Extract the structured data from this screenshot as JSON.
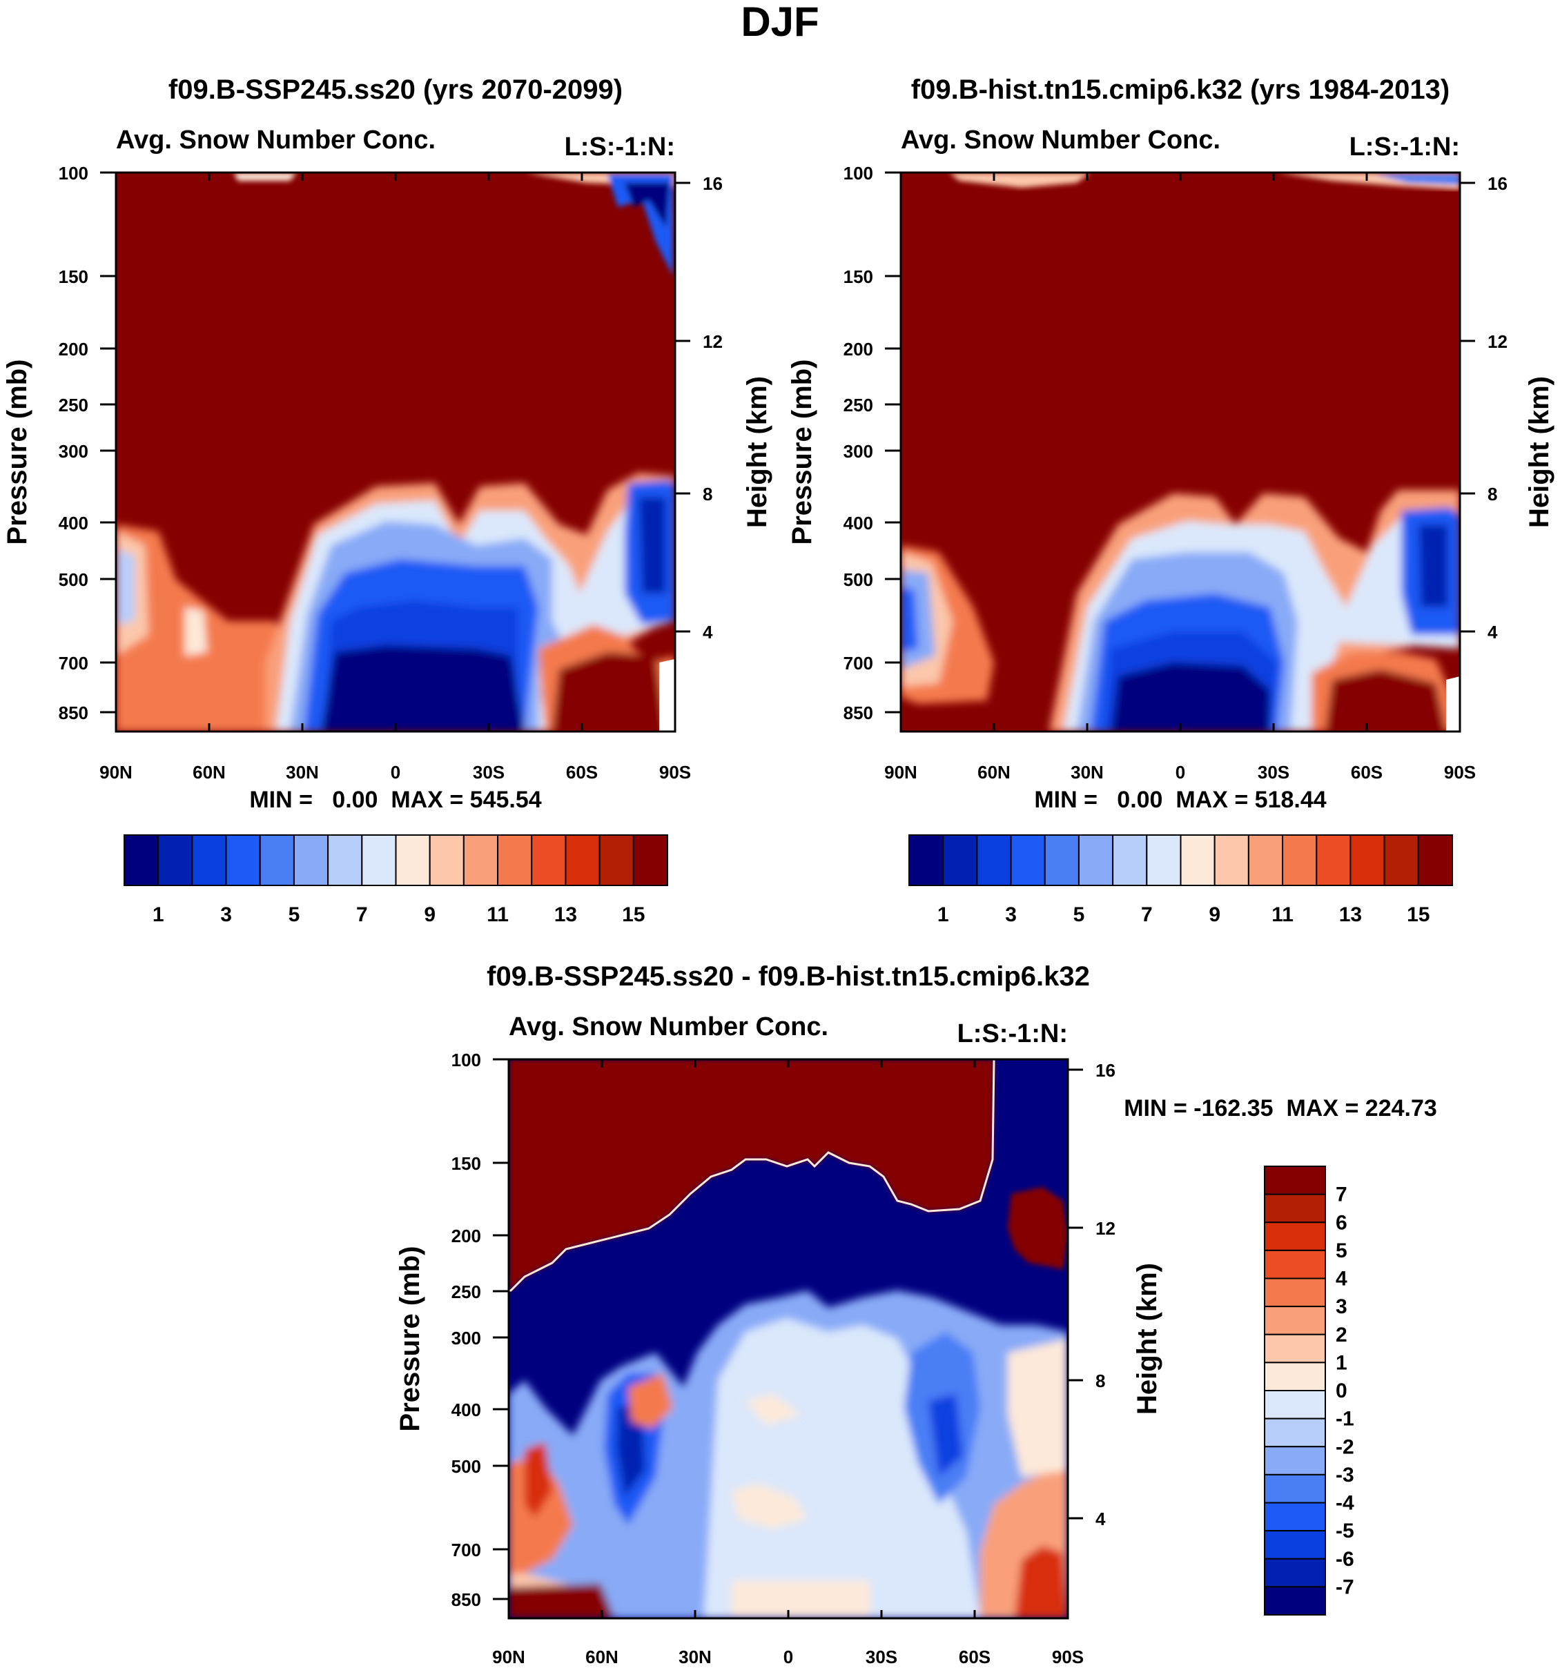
{
  "title": "DJF",
  "chart_data": [
    {
      "type": "heatmap",
      "title": "f09.B-SSP245.ss20 (yrs 2070-2099)",
      "subtitle_left": "Avg. Snow Number Conc.",
      "subtitle_right": "L:S:-1:N:",
      "ylabel": "Pressure (mb)",
      "ylabel_right": "Height (km)",
      "xticks": [
        "90N",
        "60N",
        "30N",
        "0",
        "30S",
        "60S",
        "90S"
      ],
      "yticks": [
        "100",
        "150",
        "200",
        "250",
        "300",
        "400",
        "500",
        "700",
        "850"
      ],
      "yticks_right": [
        "16",
        "12",
        "8",
        "4"
      ],
      "stats": "MIN =   0.00  MAX = 545.54",
      "colorbar": {
        "labels": [
          "1",
          "3",
          "5",
          "7",
          "9",
          "11",
          "13",
          "15"
        ],
        "colors": [
          "#00007f",
          "#0021b2",
          "#0a3fe0",
          "#1e5af5",
          "#4a7ef5",
          "#88aaf7",
          "#b8cefa",
          "#dbe8fb",
          "#fde9d9",
          "#fcc7ab",
          "#f9a07a",
          "#f47a4e",
          "#ec4d24",
          "#d82e0a",
          "#b21f04",
          "#850000"
        ]
      }
    },
    {
      "type": "heatmap",
      "title": "f09.B-hist.tn15.cmip6.k32 (yrs 1984-2013)",
      "subtitle_left": "Avg. Snow Number Conc.",
      "subtitle_right": "L:S:-1:N:",
      "ylabel": "Pressure (mb)",
      "ylabel_right": "Height (km)",
      "xticks": [
        "90N",
        "60N",
        "30N",
        "0",
        "30S",
        "60S",
        "90S"
      ],
      "yticks": [
        "100",
        "150",
        "200",
        "250",
        "300",
        "400",
        "500",
        "700",
        "850"
      ],
      "yticks_right": [
        "16",
        "12",
        "8",
        "4"
      ],
      "stats": "MIN =   0.00  MAX = 518.44",
      "colorbar": {
        "labels": [
          "1",
          "3",
          "5",
          "7",
          "9",
          "11",
          "13",
          "15"
        ],
        "colors": [
          "#00007f",
          "#0021b2",
          "#0a3fe0",
          "#1e5af5",
          "#4a7ef5",
          "#88aaf7",
          "#b8cefa",
          "#dbe8fb",
          "#fde9d9",
          "#fcc7ab",
          "#f9a07a",
          "#f47a4e",
          "#ec4d24",
          "#d82e0a",
          "#b21f04",
          "#850000"
        ]
      }
    },
    {
      "type": "heatmap",
      "title": "f09.B-SSP245.ss20 - f09.B-hist.tn15.cmip6.k32",
      "subtitle_left": "Avg. Snow Number Conc.",
      "subtitle_right": "L:S:-1:N:",
      "ylabel": "Pressure (mb)",
      "ylabel_right": "Height (km)",
      "xticks": [
        "90N",
        "60N",
        "30N",
        "0",
        "30S",
        "60S",
        "90S"
      ],
      "yticks": [
        "100",
        "150",
        "200",
        "250",
        "300",
        "400",
        "500",
        "700",
        "850"
      ],
      "yticks_right": [
        "16",
        "12",
        "8",
        "4"
      ],
      "stats": "MIN = -162.35  MAX = 224.73",
      "colorbar": {
        "labels": [
          "7",
          "6",
          "5",
          "4",
          "3",
          "2",
          "1",
          "0",
          "-1",
          "-2",
          "-3",
          "-4",
          "-5",
          "-6",
          "-7"
        ],
        "colors": [
          "#850000",
          "#b21f04",
          "#d82e0a",
          "#ec4d24",
          "#f47a4e",
          "#f9a07a",
          "#fcc7ab",
          "#fde9d9",
          "#dbe8fb",
          "#b8cefa",
          "#88aaf7",
          "#4a7ef5",
          "#1e5af5",
          "#0a3fe0",
          "#0021b2",
          "#00007f"
        ]
      }
    }
  ]
}
